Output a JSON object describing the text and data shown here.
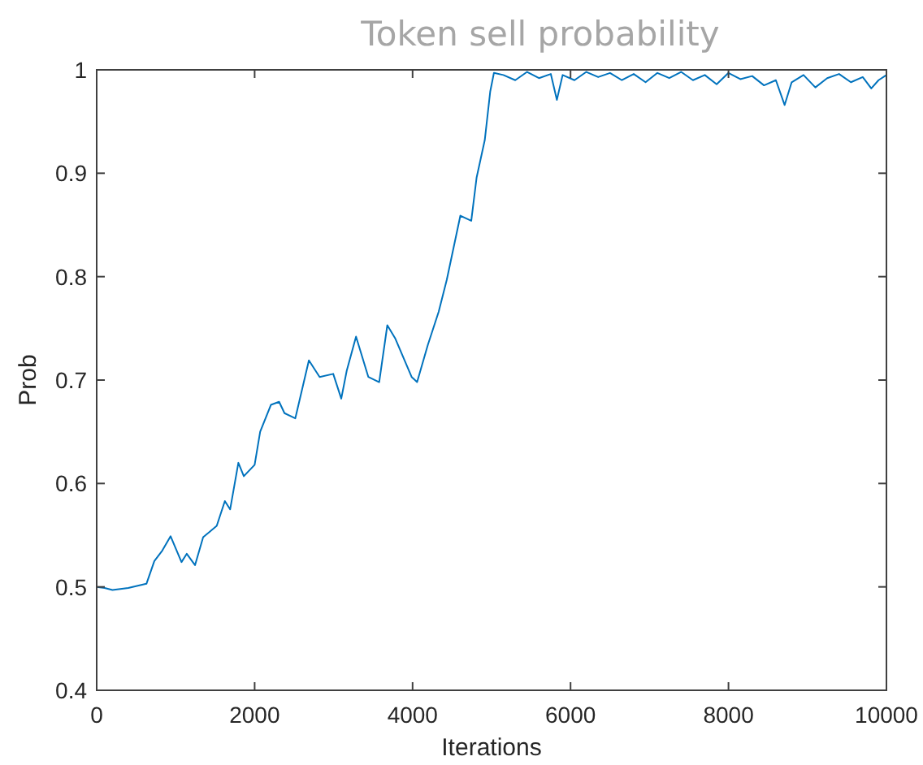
{
  "chart_data": {
    "type": "line",
    "title": "Token sell probability",
    "xlabel": "Iterations",
    "ylabel": "Prob",
    "xlim": [
      0,
      10000
    ],
    "ylim": [
      0.4,
      1
    ],
    "xticks": [
      0,
      2000,
      4000,
      6000,
      8000,
      10000
    ],
    "yticks": [
      0.4,
      0.5,
      0.6,
      0.7,
      0.8,
      0.9,
      1
    ],
    "grid": false,
    "series": [
      {
        "color": "#0072bd",
        "x": [
          0,
          100,
          200,
          400,
          630,
          730,
          830,
          936,
          1074,
          1140,
          1245,
          1348,
          1520,
          1623,
          1690,
          1794,
          1863,
          2000,
          2070,
          2206,
          2310,
          2378,
          2515,
          2687,
          2823,
          2995,
          3097,
          3166,
          3284,
          3440,
          3577,
          3680,
          3782,
          3988,
          4057,
          4193,
          4330,
          4433,
          4605,
          4743,
          4811,
          4914,
          4983,
          5030,
          5150,
          5300,
          5450,
          5600,
          5750,
          5827,
          5900,
          6050,
          6200,
          6350,
          6500,
          6650,
          6800,
          6950,
          7100,
          7250,
          7400,
          7550,
          7700,
          7850,
          8000,
          8150,
          8300,
          8450,
          8600,
          8711,
          8800,
          8950,
          9100,
          9250,
          9400,
          9550,
          9700,
          9808,
          9900,
          10000
        ],
        "values": [
          0.5,
          0.499,
          0.497,
          0.499,
          0.503,
          0.525,
          0.535,
          0.549,
          0.524,
          0.532,
          0.521,
          0.548,
          0.559,
          0.583,
          0.575,
          0.62,
          0.607,
          0.618,
          0.65,
          0.676,
          0.679,
          0.668,
          0.663,
          0.719,
          0.703,
          0.706,
          0.682,
          0.709,
          0.742,
          0.703,
          0.698,
          0.753,
          0.74,
          0.703,
          0.698,
          0.734,
          0.766,
          0.797,
          0.859,
          0.854,
          0.896,
          0.932,
          0.979,
          0.997,
          0.995,
          0.99,
          0.998,
          0.992,
          0.996,
          0.971,
          0.995,
          0.99,
          0.998,
          0.993,
          0.997,
          0.99,
          0.996,
          0.988,
          0.997,
          0.992,
          0.998,
          0.99,
          0.995,
          0.986,
          0.997,
          0.991,
          0.994,
          0.985,
          0.99,
          0.966,
          0.988,
          0.995,
          0.983,
          0.992,
          0.996,
          0.988,
          0.993,
          0.982,
          0.99,
          0.995
        ]
      }
    ]
  }
}
